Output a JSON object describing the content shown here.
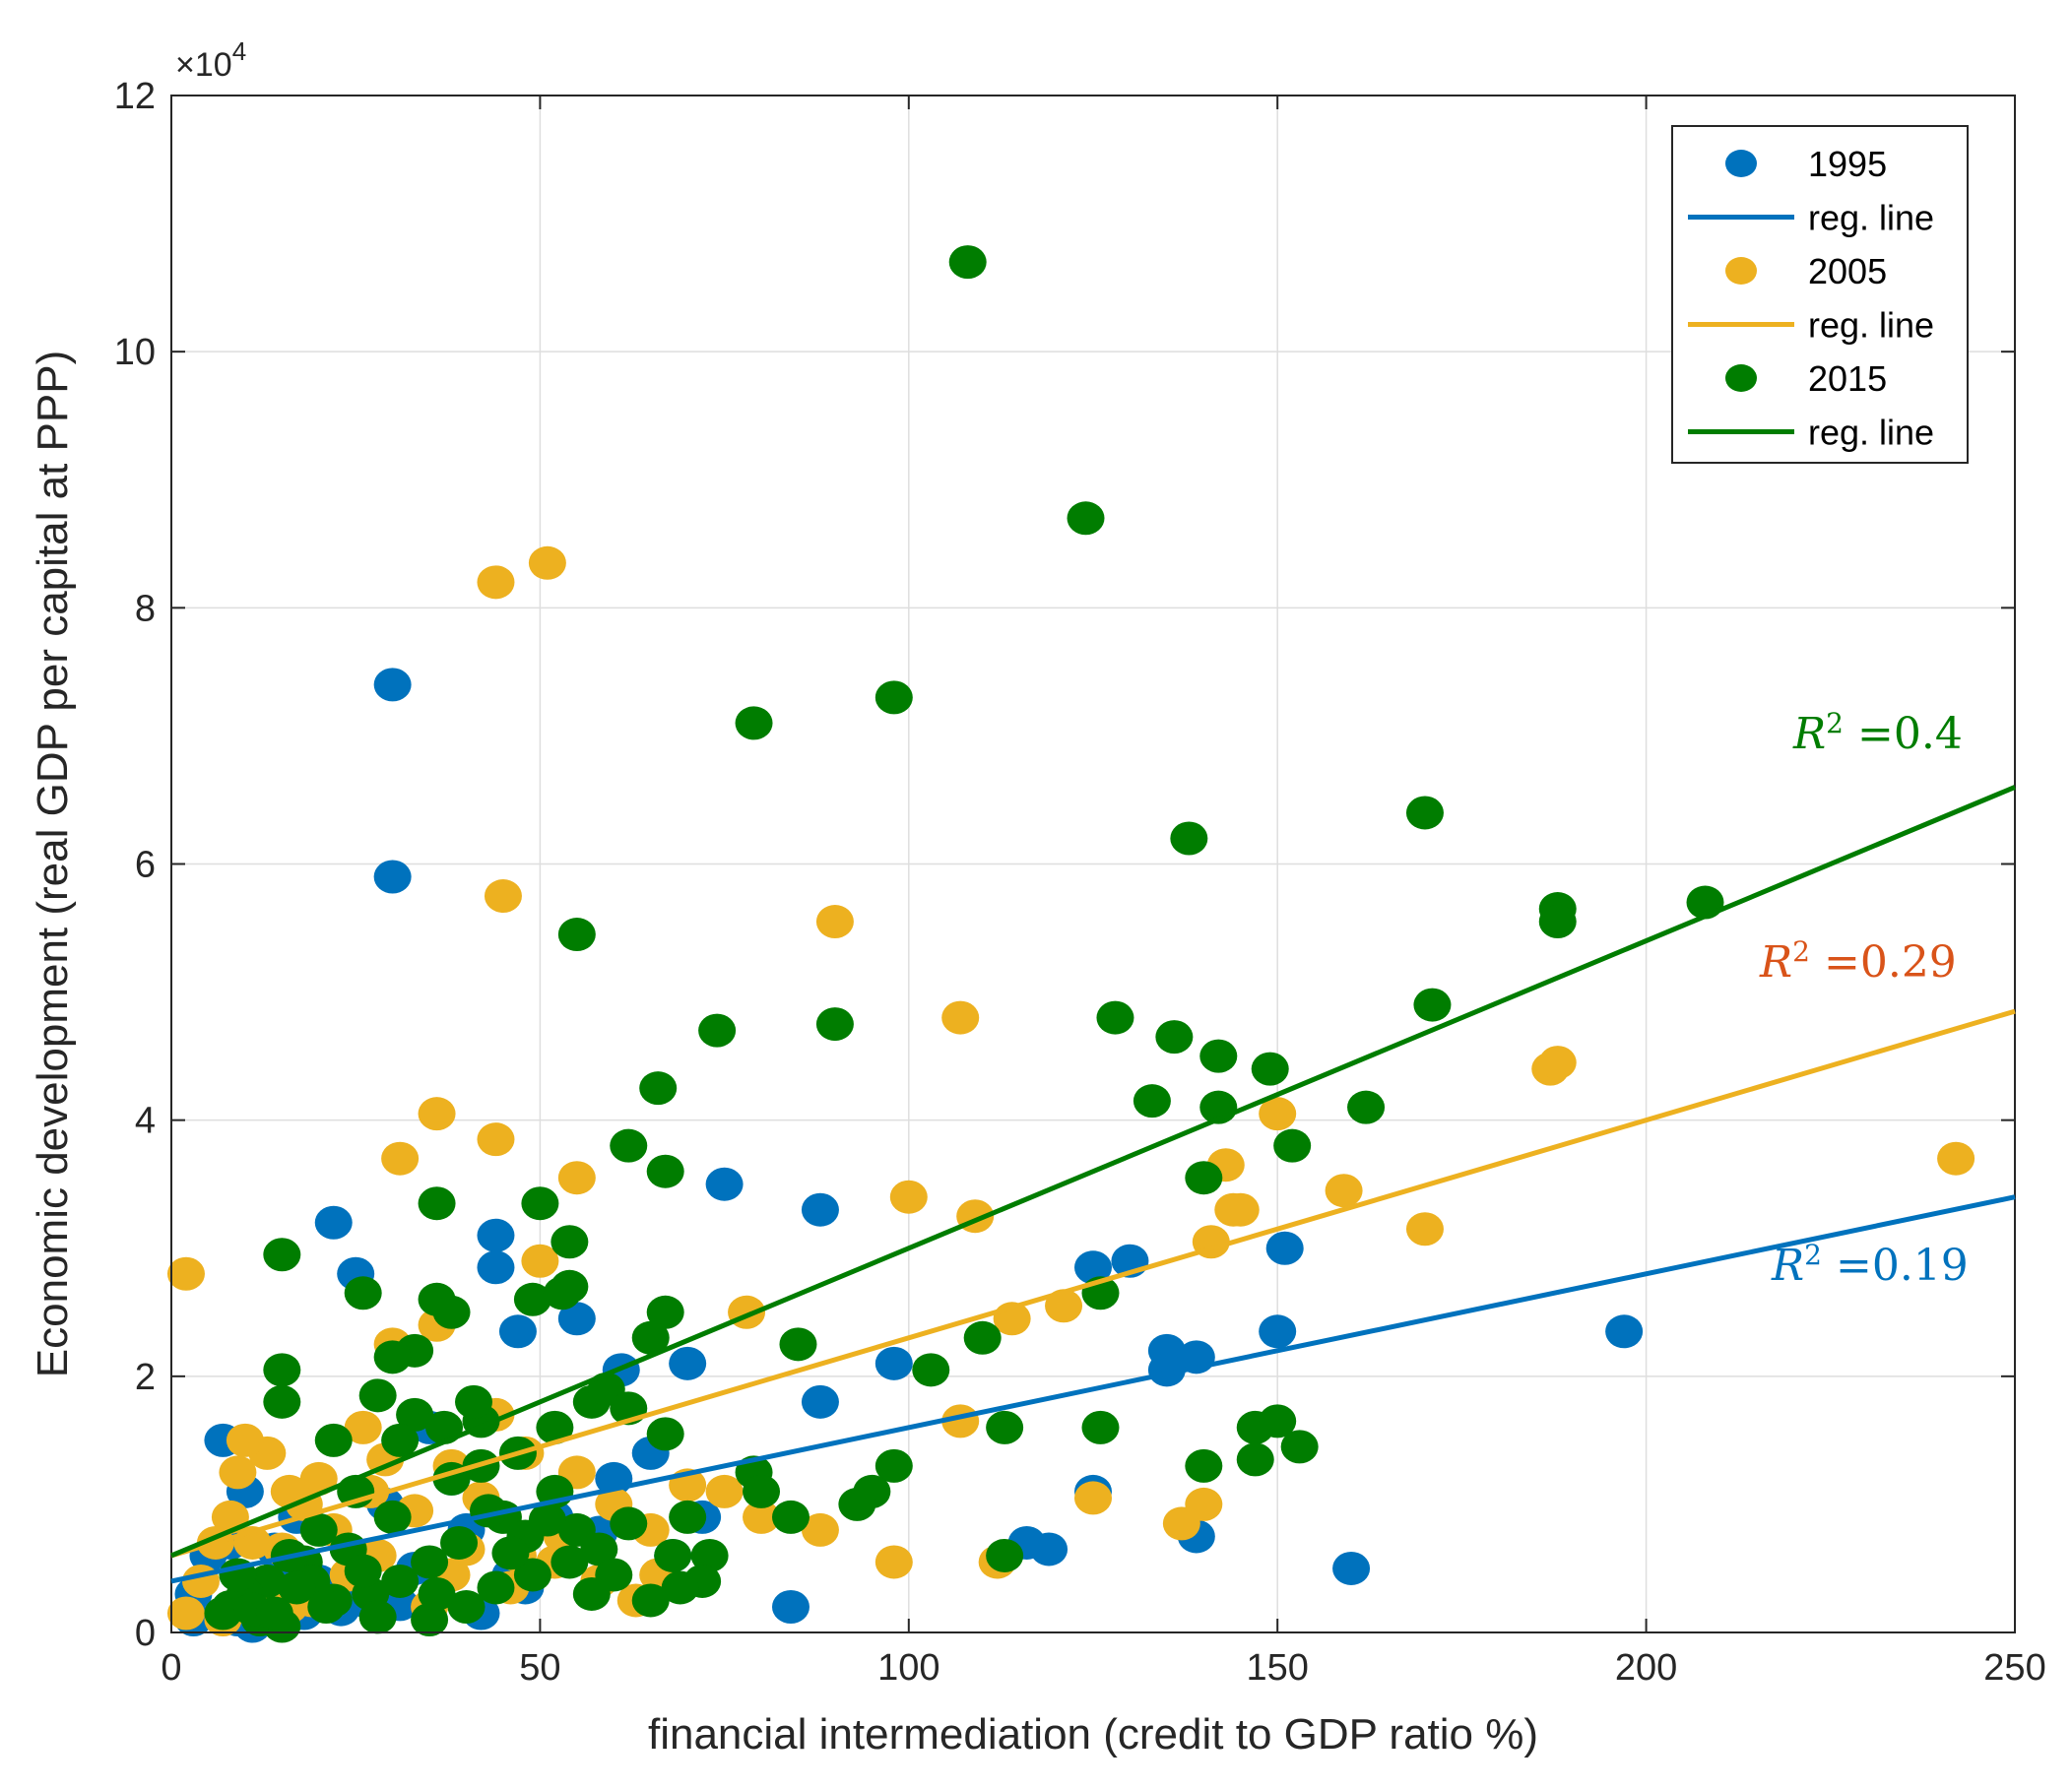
{
  "chart_data": {
    "type": "scatter",
    "title": "",
    "xlabel": "financial intermediation (credit to GDP ratio %)",
    "ylabel": "Economic development (real GDP per capital at PPP)",
    "xlim": [
      0,
      250
    ],
    "ylim": [
      0,
      120000
    ],
    "xticks": [
      0,
      50,
      100,
      150,
      200,
      250
    ],
    "xtick_labels": [
      "0",
      "50",
      "100",
      "150",
      "200",
      "250"
    ],
    "yticks": [
      0,
      20000,
      40000,
      60000,
      80000,
      100000,
      120000
    ],
    "ytick_labels": [
      "0",
      "2",
      "4",
      "6",
      "8",
      "10",
      "12"
    ],
    "y_exponent_base": "×10",
    "y_exponent_power": "4",
    "grid": true,
    "legend_position": "top-right",
    "legend": [
      {
        "label": "1995",
        "kind": "marker",
        "series": 0
      },
      {
        "label": "reg. line",
        "kind": "line",
        "series": 0
      },
      {
        "label": "2005",
        "kind": "marker",
        "series": 1
      },
      {
        "label": "reg. line",
        "kind": "line",
        "series": 1
      },
      {
        "label": "2015",
        "kind": "marker",
        "series": 2
      },
      {
        "label": "reg. line",
        "kind": "line",
        "series": 2
      }
    ],
    "series": [
      {
        "name": "1995",
        "color": "#0072BD",
        "r2_label_color": "#0072BD",
        "r2_label": "=0.19",
        "r2_var": "R",
        "r2_sup": "2",
        "reg_line": [
          [
            0,
            4000
          ],
          [
            250,
            34000
          ]
        ],
        "points": [
          [
            30,
            74000
          ],
          [
            30,
            59000
          ],
          [
            22,
            32000
          ],
          [
            25,
            28000
          ],
          [
            44,
            31000
          ],
          [
            44,
            28500
          ],
          [
            47,
            23500
          ],
          [
            55,
            24500
          ],
          [
            61,
            20500
          ],
          [
            70,
            21000
          ],
          [
            75,
            35000
          ],
          [
            88,
            33000
          ],
          [
            88,
            18000
          ],
          [
            98,
            21000
          ],
          [
            125,
            28500
          ],
          [
            130,
            29000
          ],
          [
            135,
            22000
          ],
          [
            135,
            20500
          ],
          [
            139,
            21500
          ],
          [
            150,
            23500
          ],
          [
            151,
            30000
          ],
          [
            197,
            23500
          ],
          [
            160,
            5000
          ],
          [
            84,
            2000
          ],
          [
            116,
            7000
          ],
          [
            119,
            6500
          ],
          [
            139,
            7500
          ],
          [
            125,
            11000
          ],
          [
            7,
            15000
          ],
          [
            10,
            11000
          ],
          [
            8,
            7000
          ],
          [
            15,
            5000
          ],
          [
            20,
            4000
          ],
          [
            3,
            3000
          ],
          [
            5,
            6000
          ],
          [
            12,
            2000
          ],
          [
            18,
            1500
          ],
          [
            25,
            3000
          ],
          [
            33,
            5000
          ],
          [
            40,
            8000
          ],
          [
            48,
            3500
          ],
          [
            52,
            9000
          ],
          [
            60,
            12000
          ],
          [
            65,
            14000
          ],
          [
            68,
            6000
          ],
          [
            72,
            9000
          ],
          [
            38,
            12000
          ],
          [
            29,
            10000
          ],
          [
            17,
            9000
          ],
          [
            9,
            1000
          ],
          [
            42,
            1500
          ],
          [
            26,
            2500
          ],
          [
            3,
            1000
          ],
          [
            11,
            500
          ],
          [
            23,
            1800
          ],
          [
            14,
            6500
          ],
          [
            31,
            2200
          ],
          [
            46,
            4500
          ],
          [
            58,
            7800
          ],
          [
            35,
            16000
          ]
        ]
      },
      {
        "name": "2005",
        "color": "#EDB120",
        "r2_label_color": "#D95319",
        "r2_label": "=0.29",
        "r2_var": "R",
        "r2_sup": "2",
        "reg_line": [
          [
            0,
            6000
          ],
          [
            250,
            48500
          ]
        ],
        "points": [
          [
            44,
            82000
          ],
          [
            51,
            83500
          ],
          [
            45,
            57500
          ],
          [
            90,
            55500
          ],
          [
            107,
            48000
          ],
          [
            36,
            40500
          ],
          [
            44,
            38500
          ],
          [
            31,
            37000
          ],
          [
            55,
            35500
          ],
          [
            2,
            28000
          ],
          [
            50,
            29000
          ],
          [
            100,
            34000
          ],
          [
            109,
            32500
          ],
          [
            143,
            36500
          ],
          [
            159,
            34500
          ],
          [
            150,
            40500
          ],
          [
            145,
            33000
          ],
          [
            144,
            33000
          ],
          [
            141,
            30500
          ],
          [
            170,
            31500
          ],
          [
            187,
            44000
          ],
          [
            188,
            44500
          ],
          [
            242,
            37000
          ],
          [
            78,
            25000
          ],
          [
            114,
            24500
          ],
          [
            121,
            25500
          ],
          [
            107,
            16500
          ],
          [
            125,
            10500
          ],
          [
            140,
            10000
          ],
          [
            137,
            8500
          ],
          [
            98,
            5500
          ],
          [
            112,
            5500
          ],
          [
            88,
            8000
          ],
          [
            75,
            11000
          ],
          [
            65,
            8000
          ],
          [
            60,
            10000
          ],
          [
            55,
            12500
          ],
          [
            48,
            14000
          ],
          [
            44,
            17000
          ],
          [
            38,
            13000
          ],
          [
            36,
            24000
          ],
          [
            30,
            22500
          ],
          [
            26,
            16000
          ],
          [
            20,
            12000
          ],
          [
            18,
            10000
          ],
          [
            16,
            11000
          ],
          [
            13,
            14000
          ],
          [
            10,
            15000
          ],
          [
            8,
            9000
          ],
          [
            6,
            7000
          ],
          [
            4,
            4000
          ],
          [
            2,
            1500
          ],
          [
            7,
            1000
          ],
          [
            12,
            3500
          ],
          [
            15,
            6500
          ],
          [
            22,
            8000
          ],
          [
            28,
            6000
          ],
          [
            33,
            9500
          ],
          [
            40,
            6500
          ],
          [
            46,
            3500
          ],
          [
            52,
            5500
          ],
          [
            58,
            4000
          ],
          [
            63,
            2500
          ],
          [
            70,
            11500
          ],
          [
            80,
            9000
          ],
          [
            24,
            4500
          ],
          [
            19,
            2500
          ],
          [
            11,
            7000
          ],
          [
            35,
            2000
          ],
          [
            42,
            10500
          ],
          [
            29,
            13500
          ],
          [
            53,
            7500
          ],
          [
            66,
            4500
          ],
          [
            9,
            12500
          ],
          [
            27,
            11000
          ],
          [
            38,
            4500
          ],
          [
            47,
            6000
          ],
          [
            16,
            2000
          ]
        ]
      },
      {
        "name": "2015",
        "color": "#007D00",
        "r2_label_color": "#007D00",
        "r2_label": "=0.4",
        "r2_var": "R",
        "r2_sup": "2",
        "reg_line": [
          [
            0,
            6000
          ],
          [
            250,
            66000
          ]
        ],
        "points": [
          [
            108,
            107000
          ],
          [
            124,
            87000
          ],
          [
            98,
            73000
          ],
          [
            79,
            71000
          ],
          [
            138,
            62000
          ],
          [
            170,
            64000
          ],
          [
            188,
            56500
          ],
          [
            188,
            55500
          ],
          [
            208,
            57000
          ],
          [
            55,
            54500
          ],
          [
            74,
            47000
          ],
          [
            90,
            47500
          ],
          [
            66,
            42500
          ],
          [
            62,
            38000
          ],
          [
            67,
            36000
          ],
          [
            128,
            48000
          ],
          [
            136,
            46500
          ],
          [
            142,
            45000
          ],
          [
            149,
            44000
          ],
          [
            133,
            41500
          ],
          [
            142,
            41000
          ],
          [
            162,
            41000
          ],
          [
            152,
            38000
          ],
          [
            171,
            49000
          ],
          [
            140,
            35500
          ],
          [
            36,
            33500
          ],
          [
            50,
            33500
          ],
          [
            54,
            30500
          ],
          [
            15,
            29500
          ],
          [
            26,
            26500
          ],
          [
            36,
            26000
          ],
          [
            38,
            25000
          ],
          [
            49,
            26000
          ],
          [
            54,
            27000
          ],
          [
            53,
            26500
          ],
          [
            67,
            25000
          ],
          [
            65,
            23000
          ],
          [
            85,
            22500
          ],
          [
            110,
            23000
          ],
          [
            103,
            20500
          ],
          [
            126,
            26500
          ],
          [
            15,
            20500
          ],
          [
            15,
            18000
          ],
          [
            28,
            18500
          ],
          [
            33,
            17000
          ],
          [
            37,
            16000
          ],
          [
            42,
            16500
          ],
          [
            47,
            14000
          ],
          [
            52,
            16000
          ],
          [
            57,
            18000
          ],
          [
            59,
            19000
          ],
          [
            62,
            17500
          ],
          [
            67,
            15500
          ],
          [
            126,
            16000
          ],
          [
            113,
            16000
          ],
          [
            147,
            16000
          ],
          [
            150,
            16500
          ],
          [
            153,
            14500
          ],
          [
            147,
            13500
          ],
          [
            140,
            13000
          ],
          [
            98,
            13000
          ],
          [
            95,
            11000
          ],
          [
            93,
            10000
          ],
          [
            79,
            12500
          ],
          [
            80,
            11000
          ],
          [
            70,
            9000
          ],
          [
            84,
            9000
          ],
          [
            68,
            6000
          ],
          [
            73,
            6000
          ],
          [
            72,
            4000
          ],
          [
            69,
            3500
          ],
          [
            65,
            2500
          ],
          [
            113,
            6000
          ],
          [
            22,
            15000
          ],
          [
            25,
            11000
          ],
          [
            31,
            15000
          ],
          [
            38,
            12000
          ],
          [
            42,
            13000
          ],
          [
            45,
            9000
          ],
          [
            48,
            7500
          ],
          [
            52,
            11000
          ],
          [
            55,
            8000
          ],
          [
            58,
            6500
          ],
          [
            60,
            4500
          ],
          [
            20,
            8000
          ],
          [
            18,
            5500
          ],
          [
            16,
            6000
          ],
          [
            13,
            4000
          ],
          [
            10,
            3000
          ],
          [
            8,
            2000
          ],
          [
            7,
            1500
          ],
          [
            12,
            1000
          ],
          [
            15,
            500
          ],
          [
            22,
            2500
          ],
          [
            27,
            3000
          ],
          [
            31,
            4000
          ],
          [
            35,
            5500
          ],
          [
            39,
            7000
          ],
          [
            44,
            3500
          ],
          [
            49,
            4500
          ],
          [
            54,
            5500
          ],
          [
            57,
            3000
          ],
          [
            62,
            8500
          ],
          [
            33,
            22000
          ],
          [
            30,
            21500
          ],
          [
            41,
            18000
          ],
          [
            24,
            6500
          ],
          [
            19,
            4000
          ],
          [
            11,
            1800
          ],
          [
            28,
            1200
          ],
          [
            35,
            1000
          ],
          [
            40,
            2000
          ],
          [
            17,
            3500
          ],
          [
            36,
            3000
          ],
          [
            26,
            4800
          ],
          [
            46,
            6200
          ],
          [
            51,
            8800
          ],
          [
            30,
            9000
          ],
          [
            43,
            9500
          ],
          [
            21,
            2000
          ],
          [
            14,
            1500
          ],
          [
            9,
            4500
          ]
        ]
      }
    ]
  }
}
